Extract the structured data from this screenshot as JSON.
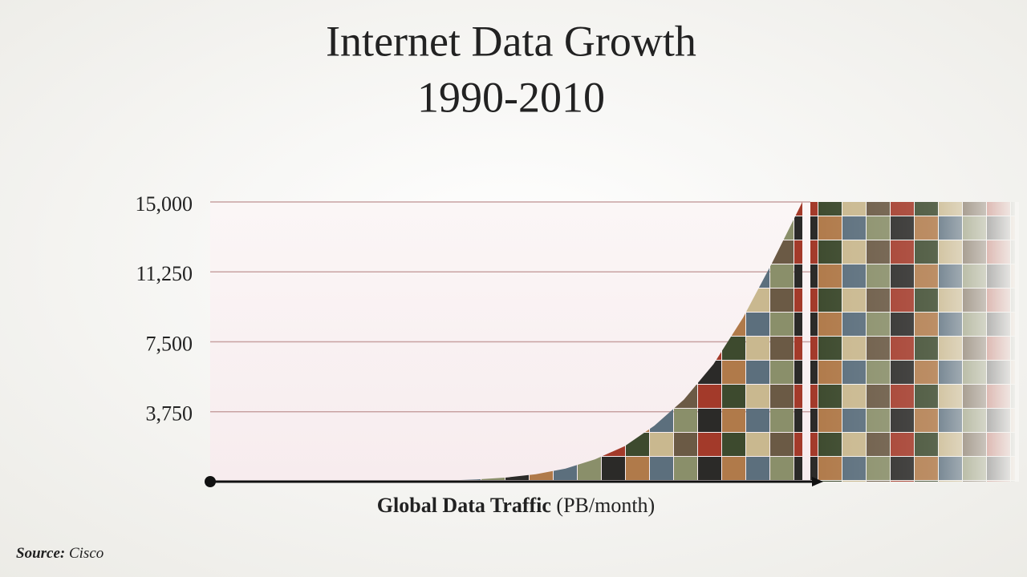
{
  "chart_data": {
    "type": "area",
    "title": "Internet Data Growth",
    "subtitle": "1990-2010",
    "x_label": "Global Data Traffic",
    "x_label_unit": "(PB/month)",
    "source_label": "Source:",
    "source": "Cisco",
    "values": [
      0,
      0,
      1,
      2,
      4,
      8,
      15,
      30,
      60,
      120,
      220,
      400,
      700,
      1200,
      1900,
      3000,
      4400,
      6300,
      8800,
      11800,
      15000
    ],
    "ylim": [
      0,
      15000
    ],
    "yticks": [
      {
        "value": 3750,
        "label": "3,750"
      },
      {
        "value": 7500,
        "label": "7,500"
      },
      {
        "value": 11250,
        "label": "11,250"
      },
      {
        "value": 15000,
        "label": "15,000"
      }
    ],
    "grid": true,
    "grid_color": "#c8a2a2"
  }
}
